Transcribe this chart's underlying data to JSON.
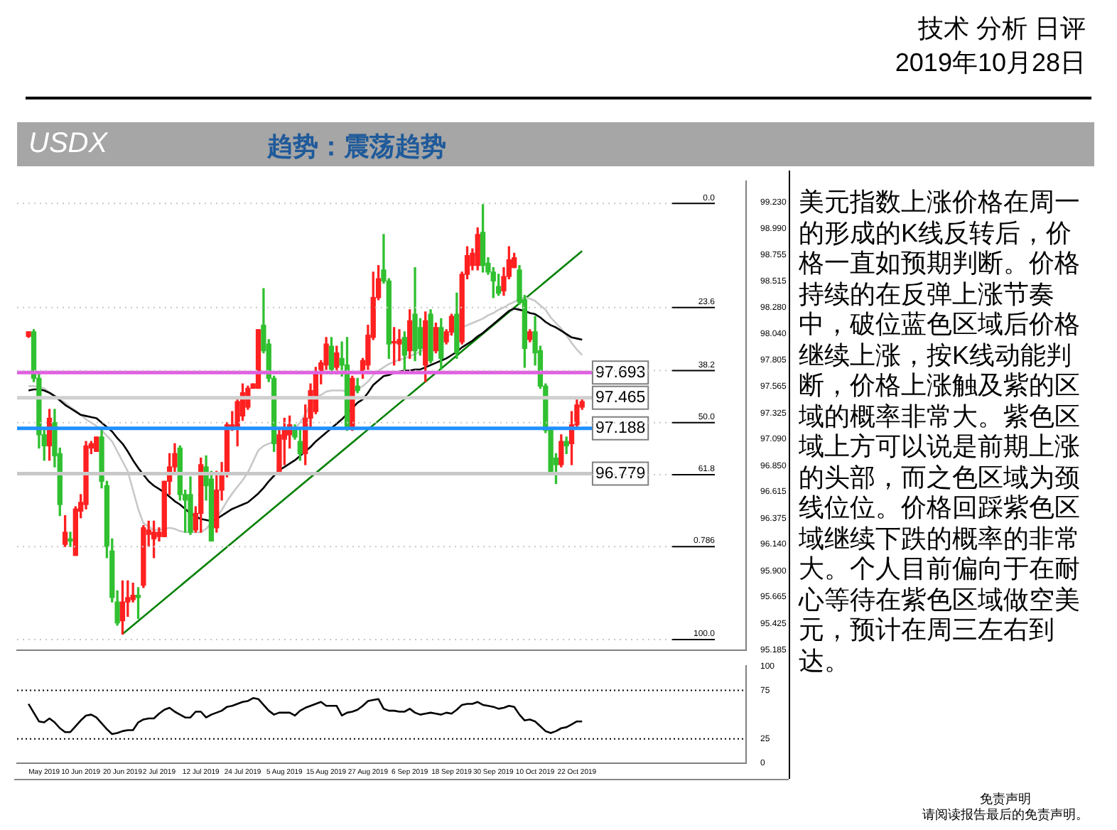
{
  "chart_data": [
    {
      "type": "candlestick",
      "title": "USDX",
      "subtitle": "趋势：震荡趋势",
      "annotations": [
        "技术 分析 日评",
        "2019年10月28日",
        "美元指数上涨价格在周一的形成的K线反转后，价格一直如预期判断。价格持续的在反弹上涨节奏中，破位蓝色区域后价格继续上涨，按K线动能判断，价格上涨触及紫的区域的概率非常大。紫色区域上方可以说是前期上涨的头部，而之色区域为颈线位位。价格回踩紫色区域继续下跌的概率的非常大。个人目前偏向于在耐心等待在紫色区域做空美元，预计在周三左右到达。",
        "免责声明",
        "请阅读报告最后的免责声明。",
        "0.0",
        "23.6",
        "38.2",
        "50.0",
        "61.8",
        "0.786",
        "100.0"
      ],
      "categories": [
        null,
        null,
        null,
        null,
        null,
        null,
        null,
        null,
        null,
        null,
        null,
        null,
        null,
        null,
        null,
        null,
        null,
        null,
        null,
        null,
        null,
        null,
        null,
        null,
        null,
        null,
        null,
        null,
        null,
        null,
        null,
        null,
        null,
        null,
        null,
        null,
        null,
        null,
        null,
        null,
        null,
        null,
        null,
        null,
        null,
        null,
        null,
        null,
        null,
        null,
        null,
        null,
        null,
        null,
        null,
        null,
        null,
        null,
        null,
        null,
        null,
        null,
        null,
        null,
        null,
        null,
        null,
        null,
        null,
        null,
        null,
        null,
        null,
        null,
        null,
        null,
        null,
        null,
        null,
        null,
        null,
        null,
        null,
        null,
        null,
        null,
        null,
        null,
        null,
        null,
        null,
        null,
        null,
        null,
        null,
        null,
        null,
        null,
        null,
        null,
        null,
        null,
        null,
        null,
        null,
        null,
        null
      ],
      "ohlc": [
        [
          98.02,
          98.06,
          98.01,
          98.06
        ],
        [
          98.06,
          98.08,
          97.61,
          97.64
        ],
        [
          97.64,
          97.68,
          97.01,
          97.13
        ],
        [
          97.13,
          97.17,
          96.9,
          97.03
        ],
        [
          97.03,
          97.36,
          96.9,
          97.28
        ],
        [
          97.24,
          97.36,
          96.84,
          96.94
        ],
        [
          96.96,
          97.01,
          96.4,
          96.5
        ],
        [
          96.14,
          96.4,
          96.12,
          96.25
        ],
        [
          96.19,
          96.25,
          96.12,
          96.17
        ],
        [
          96.04,
          96.48,
          96.04,
          96.46
        ],
        [
          96.44,
          96.59,
          96.38,
          96.52
        ],
        [
          96.5,
          97.07,
          96.46,
          97.03
        ],
        [
          97.01,
          97.07,
          96.96,
          97.05
        ],
        [
          96.98,
          97.11,
          96.98,
          97.11
        ],
        [
          97.11,
          97.17,
          96.65,
          96.71
        ],
        [
          96.67,
          96.71,
          96.02,
          96.12
        ],
        [
          96.08,
          96.19,
          95.62,
          95.66
        ],
        [
          95.62,
          95.72,
          95.41,
          95.43
        ],
        [
          95.45,
          95.81,
          95.33,
          95.62
        ],
        [
          95.62,
          95.81,
          95.49,
          95.66
        ],
        [
          95.64,
          95.79,
          95.62,
          95.68
        ],
        [
          95.68,
          95.75,
          95.47,
          95.66
        ],
        [
          95.77,
          96.31,
          95.75,
          96.29
        ],
        [
          96.23,
          96.35,
          96.12,
          96.27
        ],
        [
          96.19,
          96.35,
          96.02,
          96.25
        ],
        [
          96.21,
          96.29,
          96.17,
          96.25
        ],
        [
          96.21,
          96.71,
          96.21,
          96.71
        ],
        [
          96.71,
          96.96,
          96.59,
          96.84
        ],
        [
          96.84,
          97.05,
          96.8,
          96.96
        ],
        [
          97.01,
          97.03,
          96.54,
          96.59
        ],
        [
          96.59,
          96.63,
          96.25,
          96.54
        ],
        [
          96.59,
          96.75,
          96.23,
          96.25
        ],
        [
          96.27,
          96.48,
          96.25,
          96.42
        ],
        [
          96.42,
          96.92,
          96.25,
          96.86
        ],
        [
          96.84,
          96.94,
          96.54,
          96.67
        ],
        [
          96.73,
          96.8,
          96.17,
          96.17
        ],
        [
          96.29,
          96.8,
          96.25,
          96.63
        ],
        [
          96.63,
          96.88,
          96.54,
          96.77
        ],
        [
          96.8,
          97.24,
          96.75,
          97.22
        ],
        [
          97.19,
          97.34,
          97.17,
          97.22
        ],
        [
          97.19,
          97.47,
          97.03,
          97.43
        ],
        [
          97.3,
          97.59,
          97.26,
          97.51
        ],
        [
          97.38,
          97.57,
          97.36,
          97.55
        ],
        [
          97.55,
          97.59,
          97.55,
          97.59
        ],
        [
          97.55,
          98.08,
          97.55,
          98.08
        ],
        [
          98.12,
          98.45,
          97.87,
          97.89
        ],
        [
          97.95,
          97.99,
          97.61,
          97.64
        ],
        [
          97.64,
          97.66,
          96.98,
          97.05
        ],
        [
          96.8,
          97.19,
          96.77,
          97.13
        ],
        [
          97.09,
          97.28,
          96.86,
          97.19
        ],
        [
          97.13,
          97.3,
          97.01,
          97.22
        ],
        [
          97.17,
          97.22,
          97.09,
          97.11
        ],
        [
          97.07,
          97.17,
          96.9,
          96.96
        ],
        [
          96.96,
          97.4,
          96.86,
          97.28
        ],
        [
          97.28,
          97.59,
          97.19,
          97.53
        ],
        [
          97.34,
          97.74,
          97.32,
          97.7
        ],
        [
          97.7,
          97.8,
          97.59,
          97.78
        ],
        [
          97.76,
          98.01,
          97.72,
          97.95
        ],
        [
          97.93,
          98.01,
          97.68,
          97.72
        ],
        [
          97.74,
          97.93,
          97.68,
          97.87
        ],
        [
          97.82,
          97.97,
          97.66,
          97.76
        ],
        [
          97.76,
          98.01,
          97.17,
          97.19
        ],
        [
          97.19,
          97.66,
          97.17,
          97.64
        ],
        [
          97.57,
          97.64,
          97.51,
          97.53
        ],
        [
          97.7,
          97.82,
          97.64,
          97.8
        ],
        [
          97.76,
          98.12,
          97.72,
          98.03
        ],
        [
          98.01,
          98.6,
          97.99,
          98.37
        ],
        [
          98.37,
          98.66,
          98.35,
          98.54
        ],
        [
          98.62,
          98.94,
          98.5,
          98.52
        ],
        [
          98.52,
          98.54,
          97.82,
          97.95
        ],
        [
          97.96,
          98.1,
          97.76,
          97.97
        ],
        [
          97.95,
          98.08,
          97.8,
          97.99
        ],
        [
          98.01,
          98.06,
          97.72,
          97.85
        ],
        [
          97.89,
          98.26,
          97.82,
          98.16
        ],
        [
          98.22,
          98.64,
          97.8,
          97.89
        ],
        [
          98.1,
          98.18,
          97.85,
          97.91
        ],
        [
          97.76,
          98.24,
          97.61,
          98.16
        ],
        [
          98.22,
          98.26,
          97.78,
          97.8
        ],
        [
          97.89,
          98.14,
          97.87,
          98.1
        ],
        [
          98.1,
          98.18,
          97.72,
          97.82
        ],
        [
          97.97,
          98.08,
          97.95,
          98.06
        ],
        [
          98.06,
          98.22,
          98.03,
          98.2
        ],
        [
          98.22,
          98.41,
          97.82,
          97.87
        ],
        [
          97.97,
          98.6,
          97.95,
          98.58
        ],
        [
          98.58,
          98.83,
          98.54,
          98.75
        ],
        [
          98.66,
          98.81,
          98.62,
          98.77
        ],
        [
          98.66,
          99.0,
          98.62,
          98.94
        ],
        [
          98.96,
          99.21,
          98.6,
          98.66
        ],
        [
          98.68,
          98.73,
          98.58,
          98.6
        ],
        [
          98.6,
          98.64,
          98.37,
          98.52
        ],
        [
          98.47,
          98.58,
          98.39,
          98.41
        ],
        [
          98.43,
          98.64,
          98.39,
          98.56
        ],
        [
          98.56,
          98.83,
          98.54,
          98.71
        ],
        [
          98.64,
          98.77,
          98.64,
          98.73
        ],
        [
          98.62,
          98.66,
          98.31,
          98.33
        ],
        [
          98.35,
          98.39,
          97.74,
          97.91
        ],
        [
          97.99,
          98.08,
          97.97,
          98.06
        ],
        [
          98.06,
          98.2,
          97.76,
          97.87
        ],
        [
          97.89,
          97.93,
          97.55,
          97.57
        ],
        [
          97.57,
          97.59,
          97.15,
          97.17
        ],
        [
          97.17,
          97.19,
          96.77,
          96.8
        ],
        [
          96.92,
          96.96,
          96.69,
          96.86
        ],
        [
          96.86,
          97.13,
          96.84,
          97.07
        ],
        [
          97.07,
          97.11,
          96.96,
          97.03
        ],
        [
          97.05,
          97.34,
          96.86,
          97.22
        ],
        [
          97.22,
          97.47,
          97.19,
          97.4
        ],
        [
          97.38,
          97.47,
          97.36,
          97.43
        ]
      ],
      "colors": [
        "#ff2020",
        "#30c030",
        "#30c030",
        "#30c030",
        "#ff2020",
        "#30c030",
        "#30c030",
        "#ff2020",
        "#30c030",
        "#ff2020",
        "#ff2020",
        "#ff2020",
        "#ff2020",
        "#ff2020",
        "#30c030",
        "#30c030",
        "#30c030",
        "#30c030",
        "#ff2020",
        "#ff2020",
        "#ff2020",
        "#30c030",
        "#ff2020",
        "#ff2020",
        "#ff2020",
        "#ff2020",
        "#ff2020",
        "#ff2020",
        "#ff2020",
        "#30c030",
        "#30c030",
        "#30c030",
        "#ff2020",
        "#ff2020",
        "#30c030",
        "#30c030",
        "#ff2020",
        "#ff2020",
        "#ff2020",
        "#ff2020",
        "#ff2020",
        "#ff2020",
        "#ff2020",
        "#ff2020",
        "#ff2020",
        "#30c030",
        "#30c030",
        "#30c030",
        "#ff2020",
        "#ff2020",
        "#ff2020",
        "#30c030",
        "#30c030",
        "#ff2020",
        "#ff2020",
        "#ff2020",
        "#ff2020",
        "#ff2020",
        "#30c030",
        "#ff2020",
        "#30c030",
        "#30c030",
        "#ff2020",
        "#30c030",
        "#ff2020",
        "#ff2020",
        "#ff2020",
        "#ff2020",
        "#30c030",
        "#30c030",
        "#ff2020",
        "#ff2020",
        "#30c030",
        "#ff2020",
        "#30c030",
        "#30c030",
        "#ff2020",
        "#30c030",
        "#ff2020",
        "#30c030",
        "#ff2020",
        "#ff2020",
        "#30c030",
        "#ff2020",
        "#ff2020",
        "#ff2020",
        "#ff2020",
        "#30c030",
        "#30c030",
        "#30c030",
        "#30c030",
        "#ff2020",
        "#ff2020",
        "#ff2020",
        "#30c030",
        "#30c030",
        "#ff2020",
        "#30c030",
        "#30c030",
        "#30c030",
        "#30c030",
        "#30c030",
        "#ff2020",
        "#30c030",
        "#ff2020",
        "#ff2020",
        "#ff2020"
      ],
      "series": [
        {
          "type": "line",
          "color": "#000000",
          "values": [
            97.53,
            97.54,
            97.54,
            97.53,
            97.51,
            97.48,
            97.44,
            97.4,
            97.37,
            97.34,
            97.31,
            97.3,
            97.29,
            97.28,
            97.24,
            97.2,
            97.16,
            97.1,
            97.05,
            96.98,
            96.9,
            96.83,
            96.77,
            96.71,
            96.67,
            96.64,
            96.61,
            96.57,
            96.53,
            96.5,
            96.46,
            96.42,
            96.39,
            96.37,
            96.36,
            96.35,
            96.37,
            96.4,
            96.43,
            96.46,
            96.48,
            96.5,
            96.52,
            96.56,
            96.6,
            96.65,
            96.71,
            96.76,
            96.81,
            96.84,
            96.87,
            96.9,
            96.94,
            96.98,
            97.02,
            97.07,
            97.11,
            97.15,
            97.19,
            97.23,
            97.27,
            97.32,
            97.37,
            97.42,
            97.45,
            97.51,
            97.58,
            97.62,
            97.66,
            97.67,
            97.69,
            97.7,
            97.71,
            97.71,
            97.72,
            97.72,
            97.74,
            97.76,
            97.78,
            97.8,
            97.82,
            97.85,
            97.88,
            97.92,
            97.95,
            97.98,
            98.02,
            98.05,
            98.09,
            98.13,
            98.17,
            98.21,
            98.25,
            98.27,
            98.26,
            98.25,
            98.23,
            98.22,
            98.19,
            98.15,
            98.12,
            98.1,
            98.07,
            98.04,
            98.01,
            98.0,
            97.99
          ]
        },
        {
          "type": "line",
          "color": "#c8c8c8",
          "values": [
            97.57,
            97.57,
            97.56,
            97.55,
            97.51,
            97.48,
            97.45,
            97.42,
            97.38,
            97.35,
            97.31,
            97.27,
            97.24,
            97.21,
            97.17,
            97.12,
            97.07,
            96.98,
            96.89,
            96.8,
            96.63,
            96.46,
            96.33,
            96.3,
            96.27,
            96.27,
            96.28,
            96.29,
            96.28,
            96.26,
            96.25,
            96.25,
            96.25,
            96.25,
            96.28,
            96.33,
            96.38,
            96.45,
            96.53,
            96.6,
            96.66,
            96.72,
            96.79,
            96.89,
            96.99,
            97.03,
            97.05,
            97.07,
            97.09,
            97.11,
            97.14,
            97.19,
            97.24,
            97.32,
            97.4,
            97.47,
            97.49,
            97.52,
            97.53,
            97.53,
            97.53,
            97.52,
            97.51,
            97.54,
            97.57,
            97.61,
            97.67,
            97.71,
            97.74,
            97.77,
            97.79,
            97.81,
            97.82,
            97.84,
            97.86,
            97.88,
            97.91,
            null,
            null,
            98.0,
            98.02,
            98.05,
            98.07,
            98.1,
            98.12,
            98.14,
            98.16,
            98.18,
            98.21,
            98.23,
            98.26,
            98.28,
            98.31,
            98.33,
            98.36,
            98.37,
            98.36,
            98.34,
            98.3,
            98.26,
            98.19,
            98.14,
            98.09,
            98.03,
            97.96,
            97.9,
            97.85
          ]
        },
        {
          "type": "line",
          "color": "#008000",
          "values": [
            null,
            null,
            null,
            null,
            null,
            null,
            null,
            null,
            null,
            null,
            null,
            null,
            null,
            null,
            null,
            null,
            null,
            null,
            95.33,
            null,
            null,
            null,
            null,
            null,
            null,
            null,
            null,
            null,
            null,
            null,
            null,
            null,
            null,
            null,
            null,
            null,
            null,
            null,
            null,
            null,
            null,
            null,
            null,
            null,
            null,
            null,
            null,
            null,
            null,
            null,
            null,
            null,
            null,
            null,
            null,
            null,
            null,
            null,
            null,
            null,
            null,
            null,
            null,
            null,
            null,
            null,
            null,
            null,
            null,
            null,
            null,
            null,
            null,
            null,
            null,
            null,
            null,
            null,
            null,
            null,
            null,
            null,
            null,
            null,
            null,
            null,
            null,
            null,
            null,
            null,
            null,
            null,
            null,
            null,
            null,
            null,
            null,
            null,
            null,
            null,
            null,
            null,
            null,
            null,
            null,
            null,
            98.79
          ]
        }
      ],
      "ylim": [
        95.185,
        99.42
      ],
      "yticks": [
        {
          "value": 99.23,
          "label": "99.230"
        },
        {
          "value": 98.99,
          "label": "98.990"
        },
        {
          "value": 98.755,
          "label": "98.755"
        },
        {
          "value": 98.515,
          "label": "98.515"
        },
        {
          "value": 98.28,
          "label": "98.280"
        },
        {
          "value": 98.04,
          "label": "98.040"
        },
        {
          "value": 97.805,
          "label": "97.805"
        },
        {
          "value": 97.565,
          "label": "97.565"
        },
        {
          "value": 97.325,
          "label": "97.325"
        },
        {
          "value": 97.09,
          "label": "97.090"
        },
        {
          "value": 96.85,
          "label": "96.850"
        },
        {
          "value": 96.615,
          "label": "96.615"
        },
        {
          "value": 96.375,
          "label": "96.375"
        },
        {
          "value": 96.14,
          "label": "96.140"
        },
        {
          "value": 95.9,
          "label": "95.900"
        },
        {
          "value": 95.665,
          "label": "95.665"
        },
        {
          "value": 95.425,
          "label": "95.425"
        },
        {
          "value": 95.185,
          "label": "95.185"
        }
      ],
      "ref_lines": [
        {
          "axis": "y",
          "value": 97.693,
          "label": "97.693",
          "color": "#e060e0"
        },
        {
          "axis": "y",
          "value": 97.465,
          "label": "97.465",
          "color": "#d0d0d0"
        },
        {
          "axis": "y",
          "value": 97.188,
          "label": "97.188",
          "color": "#2090ff"
        },
        {
          "axis": "y",
          "value": 96.779,
          "label": "96.779",
          "color": "#c8c8c8"
        },
        {
          "axis": "y",
          "value": 99.22
        },
        {
          "axis": "y",
          "value": 98.28
        },
        {
          "axis": "y",
          "value": 97.71
        },
        {
          "axis": "y",
          "value": 97.24
        },
        {
          "axis": "y",
          "value": 96.77
        },
        {
          "axis": "y",
          "value": 96.12
        },
        {
          "axis": "y",
          "value": 95.28
        }
      ],
      "legend": false,
      "grid": false,
      "marker": "none"
    },
    {
      "type": "line",
      "categories": [
        null,
        null,
        null,
        "May 2019",
        null,
        null,
        null,
        null,
        null,
        null,
        "10 Jun 2019",
        null,
        null,
        null,
        null,
        null,
        null,
        null,
        "20 Jun 2019",
        null,
        null,
        null,
        null,
        null,
        null,
        "2 Jul 2019",
        null,
        null,
        null,
        null,
        null,
        null,
        null,
        "12 Jul 2019",
        null,
        null,
        null,
        null,
        null,
        null,
        null,
        "24 Jul 2019",
        null,
        null,
        null,
        null,
        null,
        null,
        null,
        "5 Aug 2019",
        null,
        null,
        null,
        null,
        null,
        null,
        null,
        "15 Aug 2019",
        null,
        null,
        null,
        null,
        null,
        null,
        null,
        "27 Aug 2019",
        null,
        null,
        null,
        null,
        null,
        null,
        null,
        "6 Sep 2019",
        null,
        null,
        null,
        null,
        null,
        null,
        null,
        "18 Sep 2019",
        null,
        null,
        null,
        null,
        null,
        null,
        null,
        "30 Sep 2019",
        null,
        null,
        null,
        null,
        null,
        null,
        null,
        "10 Oct 2019",
        null,
        null,
        null,
        null,
        null,
        null,
        null,
        "22 Oct 2019",
        null
      ],
      "series": [
        {
          "color": "#000000",
          "values": [
            61,
            52,
            43,
            42,
            46,
            42,
            36,
            32,
            32,
            38,
            44,
            49,
            50,
            47,
            41,
            35,
            30,
            31,
            33,
            34,
            34,
            42,
            45,
            46,
            46,
            51,
            55,
            57,
            53,
            50,
            47,
            47,
            53,
            53,
            47,
            50,
            52,
            54,
            58,
            59,
            61,
            63,
            64,
            67,
            66,
            60,
            54,
            50,
            52,
            52,
            52,
            49,
            54,
            57,
            59,
            61,
            63,
            59,
            59,
            59,
            49,
            52,
            53,
            55,
            59,
            64,
            65,
            66,
            56,
            54,
            54,
            53,
            53,
            56,
            52,
            50,
            51,
            52,
            51,
            50,
            52,
            51,
            55,
            60,
            61,
            61,
            63,
            60,
            59,
            58,
            56,
            57,
            59,
            58,
            50,
            44,
            45,
            43,
            38,
            33,
            31,
            33,
            36,
            37,
            40,
            43,
            43
          ]
        }
      ],
      "ylim": [
        0,
        100
      ],
      "yticks": [
        0,
        25,
        75,
        100
      ],
      "ref_lines": [
        {
          "axis": "y",
          "value": 75,
          "color": "#000000",
          "line_style": "dotted"
        },
        {
          "axis": "y",
          "value": 25,
          "color": "#000000",
          "line_style": "dotted"
        }
      ],
      "legend": false,
      "grid": false,
      "marker": "none"
    }
  ]
}
